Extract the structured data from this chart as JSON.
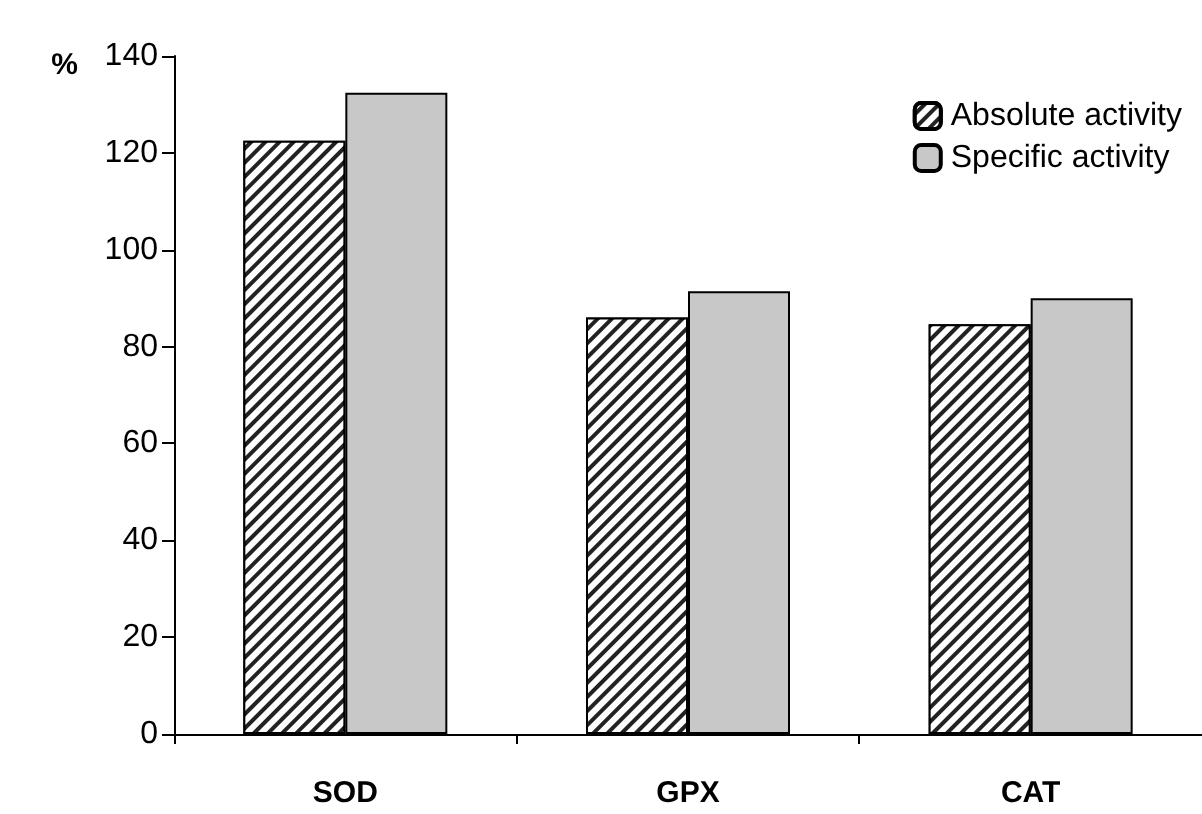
{
  "chart_data": {
    "type": "bar",
    "ylabel": "%",
    "categories": [
      "SOD",
      "GPX",
      "CAT"
    ],
    "series": [
      {
        "name": "Absolute activity",
        "color": "#222222",
        "values": [
          122.5,
          86,
          84.6
        ]
      },
      {
        "name": "Specific activity",
        "color": "#c8c8c8",
        "values": [
          132.4,
          91.4,
          90
        ]
      }
    ],
    "ylim": [
      0,
      140
    ],
    "yticks": [
      0,
      20,
      40,
      60,
      80,
      100,
      120,
      140
    ],
    "grid": false,
    "legend": "top right"
  }
}
